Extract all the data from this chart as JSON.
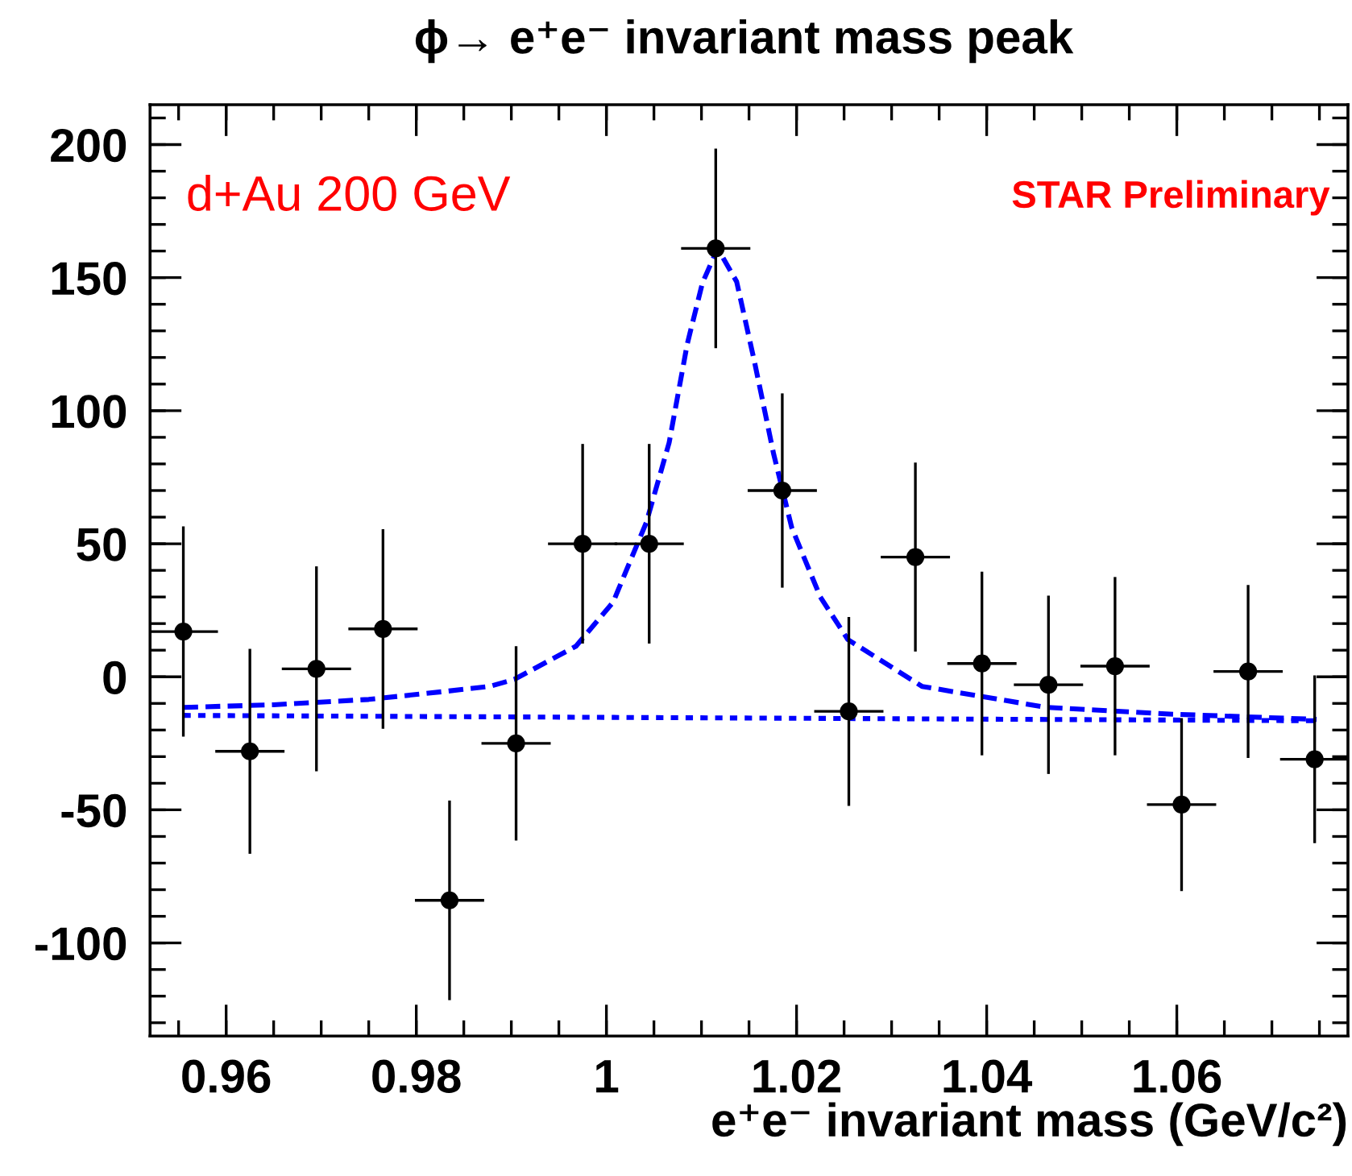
{
  "chart_data": {
    "type": "scatter",
    "title": "ϕ→ e⁺e⁻ invariant mass peak",
    "xlabel": "e⁺e⁻ invariant mass (GeV/c²)",
    "xlim": [
      0.952,
      1.078
    ],
    "xticks": [
      0.96,
      0.98,
      1,
      1.02,
      1.04,
      1.06
    ],
    "ylim": [
      -135,
      215
    ],
    "yticks": [
      -100,
      -50,
      0,
      50,
      100,
      150,
      200
    ],
    "grid": false,
    "legend": false,
    "annotations": [
      "d+Au 200 GeV",
      "STAR Preliminary"
    ],
    "series": [
      {
        "type": "scatter",
        "color": "#000000",
        "marker": "circle",
        "x": [
          0.9555,
          0.9625,
          0.9695,
          0.9765,
          0.9835,
          0.9905,
          0.9975,
          1.0045,
          1.0115,
          1.0185,
          1.0255,
          1.0325,
          1.0395,
          1.0465,
          1.0535,
          1.0605,
          1.0675,
          1.0745
        ],
        "values": [
          17,
          -28,
          3,
          18,
          -84,
          -25,
          50,
          50,
          161,
          70,
          -13,
          45,
          5,
          -3,
          4,
          -48,
          2,
          -31
        ],
        "errors": [
          39,
          38,
          38,
          37,
          37,
          36,
          37,
          37,
          37,
          36,
          35,
          35,
          34,
          33,
          33,
          32,
          32,
          31
        ],
        "xerrors": [
          0.0035,
          0.0035,
          0.0035,
          0.0035,
          0.0035,
          0.0035,
          0.0035,
          0.0035,
          0.0035,
          0.0035,
          0.0035,
          0.0035,
          0.0035,
          0.0035,
          0.0035,
          0.0035,
          0.0035,
          0.0035
        ]
      },
      {
        "type": "line",
        "color": "#0000ff",
        "line_style": "dashed",
        "x": [
          0.9555,
          0.965,
          0.975,
          0.983,
          0.9877,
          0.9903,
          0.9968,
          1.0007,
          1.0042,
          1.0066,
          1.0085,
          1.0101,
          1.0117,
          1.0137,
          1.0156,
          1.0176,
          1.0195,
          1.0225,
          1.0254,
          1.0332,
          1.0463,
          1.0592,
          1.0747
        ],
        "values": [
          -11.5,
          -10.5,
          -8.5,
          -5.5,
          -3.6,
          -1,
          11.5,
          28,
          58,
          88,
          125,
          148,
          161,
          148.5,
          118,
          83.6,
          56,
          30,
          14,
          -3.6,
          -11.5,
          -14,
          -16
        ]
      },
      {
        "type": "line",
        "color": "#0000ff",
        "line_style": "dotted",
        "x": [
          0.9555,
          1.0747
        ],
        "values": [
          -14.5,
          -16.5
        ]
      }
    ]
  }
}
